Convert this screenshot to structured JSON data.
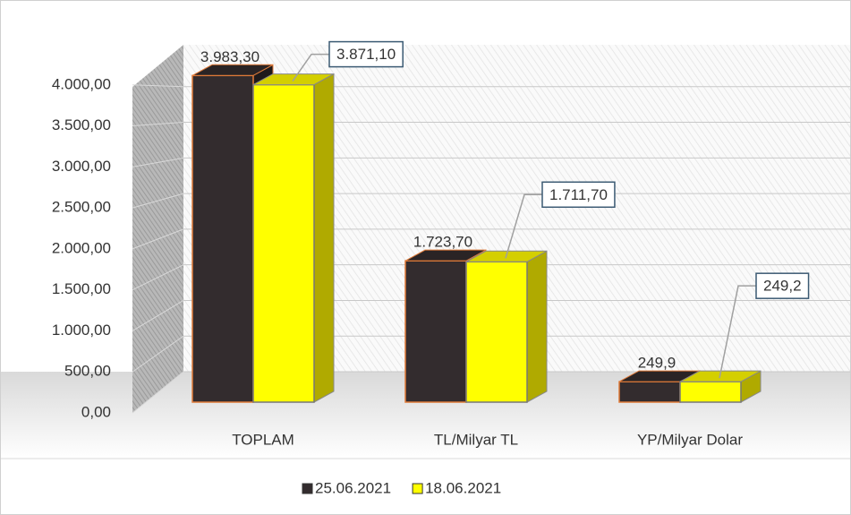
{
  "chart_data": {
    "type": "bar3d",
    "categories": [
      "TOPLAM",
      "TL/Milyar TL",
      "YP/Milyar Dolar"
    ],
    "series": [
      {
        "name": "25.06.2021",
        "color": "#332c2e",
        "values": [
          3983.3,
          1723.7,
          249.9
        ],
        "value_labels": [
          "3.983,30",
          "1.723,70",
          "249,9"
        ]
      },
      {
        "name": "18.06.2021",
        "color": "#ffff00",
        "values": [
          3871.1,
          1711.7,
          249.2
        ],
        "value_labels": [
          "3.871,10",
          "1.711,70",
          "249,2"
        ]
      }
    ],
    "ylim": [
      0,
      4500
    ],
    "yticks": [
      {
        "value": 0,
        "label": "0,00"
      },
      {
        "value": 500,
        "label": "500,00"
      },
      {
        "value": 1000,
        "label": "1.000,00"
      },
      {
        "value": 1500,
        "label": "1.500,00"
      },
      {
        "value": 2000,
        "label": "2.000,00"
      },
      {
        "value": 2500,
        "label": "2.500,00"
      },
      {
        "value": 3000,
        "label": "3.000,00"
      },
      {
        "value": 3500,
        "label": "3.500,00"
      },
      {
        "value": 4000,
        "label": "4.000,00"
      }
    ],
    "grid": true,
    "legend": "bottom"
  }
}
